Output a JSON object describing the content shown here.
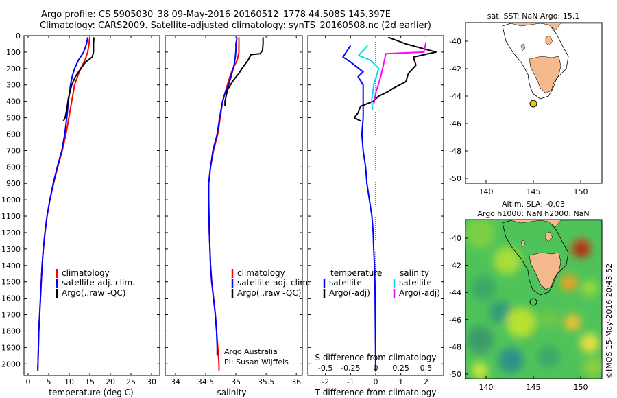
{
  "header": {
    "line1": "Argo profile: CS 5905030_38 09-May-2016 20160512_1778 44.508S 145.397E",
    "line2": "Climatology: CARS2009. Satellite-adjusted climatology: synTS_20160508.nc (2d earlier)"
  },
  "colors": {
    "climatology": "#ff0000",
    "satellite": "#0000ff",
    "argo": "#000000",
    "sat_sal": "#00e0e0",
    "argo_sal": "#ff00ff"
  },
  "depth_ticks": [
    0,
    100,
    200,
    300,
    400,
    500,
    600,
    700,
    800,
    900,
    1000,
    1100,
    1200,
    1300,
    1400,
    1500,
    1600,
    1700,
    1800,
    1900,
    2000
  ],
  "panels": {
    "temperature": {
      "xlabel": "temperature (deg C)",
      "xticks": [
        "0",
        "5",
        "10",
        "15",
        "20",
        "25",
        "30"
      ],
      "legend": [
        "climatology",
        "satellite-adj. clim.",
        "Argo(..raw -QC)"
      ]
    },
    "salinity": {
      "xlabel": "salinity",
      "xticks": [
        "34",
        "34.5",
        "35",
        "35.5",
        "36"
      ],
      "legend": [
        "climatology",
        "satellite-adj. clim.",
        "Argo(..raw -QC)"
      ],
      "note1": "Argo Australia",
      "note2": "PI: Susan Wijffels"
    },
    "difference": {
      "top_label": "S difference from climatology",
      "s_ticks": [
        "-0.5",
        "-0.25",
        "0",
        "0.25",
        "0.5"
      ],
      "t_ticks": [
        "-2",
        "-1",
        "0",
        "1",
        "2"
      ],
      "xlabel": "T difference from climatology",
      "legend_t_title": "temperature",
      "legend_s_title": "salinity",
      "legend_t": [
        "satellite",
        "Argo(-adj)"
      ],
      "legend_s": [
        "satellite",
        "Argo(-adj)"
      ]
    }
  },
  "map_sst": {
    "title": "sat. SST: NaN Argo: 15.1",
    "lat_ticks": [
      "-40",
      "-42",
      "-44",
      "-46",
      "-48",
      "-50"
    ],
    "lon_ticks": [
      "140",
      "145",
      "150"
    ]
  },
  "map_sla": {
    "title1": "Altim. SLA: -0.03",
    "title2": "Argo h1000: NaN h2000: NaN",
    "lat_ticks": [
      "-40",
      "-42",
      "-44",
      "-46",
      "-48",
      "-50"
    ],
    "lon_ticks": [
      "140",
      "145",
      "150"
    ],
    "stamp": "©IMOS 15-May-2016 20:43:52"
  },
  "chart_data": [
    {
      "type": "line",
      "title": "",
      "xlabel": "temperature (deg C)",
      "ylabel": "",
      "xlim": [
        -1,
        32
      ],
      "ylim": [
        2070,
        0
      ],
      "series": [
        {
          "name": "climatology",
          "points": [
            [
              15,
              10
            ],
            [
              14.8,
              50
            ],
            [
              14.5,
              100
            ],
            [
              13.8,
              150
            ],
            [
              12.8,
              200
            ],
            [
              12,
              250
            ],
            [
              11.3,
              300
            ],
            [
              10.6,
              400
            ],
            [
              9.9,
              500
            ],
            [
              9.2,
              600
            ],
            [
              8.3,
              700
            ],
            [
              7.2,
              800
            ],
            [
              6.2,
              900
            ],
            [
              5.3,
              1000
            ],
            [
              4.6,
              1100
            ],
            [
              4.1,
              1200
            ],
            [
              3.7,
              1300
            ],
            [
              3.4,
              1400
            ],
            [
              3.2,
              1500
            ],
            [
              3,
              1600
            ],
            [
              2.8,
              1700
            ],
            [
              2.6,
              1800
            ],
            [
              2.5,
              1900
            ],
            [
              2.4,
              2000
            ],
            [
              2.35,
              2040
            ]
          ]
        },
        {
          "name": "satellite-adj. clim.",
          "points": [
            [
              14.5,
              10
            ],
            [
              14.2,
              50
            ],
            [
              13.5,
              100
            ],
            [
              12.2,
              150
            ],
            [
              11.3,
              200
            ],
            [
              10.7,
              250
            ],
            [
              10.3,
              300
            ],
            [
              9.8,
              400
            ],
            [
              9.4,
              500
            ],
            [
              8.9,
              600
            ],
            [
              8.2,
              700
            ],
            [
              7.1,
              800
            ],
            [
              6.1,
              900
            ],
            [
              5.3,
              1000
            ],
            [
              4.6,
              1100
            ],
            [
              4.1,
              1200
            ],
            [
              3.7,
              1300
            ],
            [
              3.4,
              1400
            ],
            [
              3.2,
              1500
            ],
            [
              3,
              1600
            ],
            [
              2.8,
              1700
            ],
            [
              2.6,
              1800
            ],
            [
              2.5,
              1900
            ],
            [
              2.4,
              2000
            ],
            [
              2.35,
              2040
            ]
          ]
        },
        {
          "name": "Argo(..raw -QC)",
          "points": [
            [
              16,
              10
            ],
            [
              15.9,
              50
            ],
            [
              15.9,
              100
            ],
            [
              15.6,
              130
            ],
            [
              14,
              160
            ],
            [
              12.8,
              200
            ],
            [
              11.5,
              250
            ],
            [
              10.6,
              300
            ],
            [
              9.8,
              380
            ],
            [
              9.4,
              450
            ],
            [
              9,
              500
            ],
            [
              8.6,
              520
            ]
          ]
        }
      ]
    },
    {
      "type": "line",
      "title": "",
      "xlabel": "salinity",
      "ylabel": "",
      "xlim": [
        33.83,
        36.1
      ],
      "ylim": [
        2070,
        0
      ],
      "series": [
        {
          "name": "climatology",
          "points": [
            [
              35.05,
              10
            ],
            [
              35.05,
              50
            ],
            [
              35.05,
              100
            ],
            [
              35.02,
              150
            ],
            [
              34.95,
              200
            ],
            [
              34.9,
              250
            ],
            [
              34.86,
              300
            ],
            [
              34.82,
              350
            ],
            [
              34.78,
              400
            ],
            [
              34.74,
              500
            ],
            [
              34.7,
              600
            ],
            [
              34.63,
              700
            ],
            [
              34.58,
              800
            ],
            [
              34.55,
              900
            ],
            [
              34.55,
              1000
            ],
            [
              34.56,
              1200
            ],
            [
              34.58,
              1400
            ],
            [
              34.6,
              1500
            ],
            [
              34.63,
              1600
            ],
            [
              34.66,
              1700
            ],
            [
              34.68,
              1800
            ],
            [
              34.7,
              1900
            ],
            [
              34.72,
              2000
            ],
            [
              34.72,
              2040
            ]
          ]
        },
        {
          "name": "satellite-adj. clim.",
          "points": [
            [
              35.02,
              10
            ],
            [
              35,
              50
            ],
            [
              35,
              90
            ],
            [
              34.99,
              130
            ],
            [
              34.97,
              180
            ],
            [
              34.92,
              250
            ],
            [
              34.88,
              300
            ],
            [
              34.82,
              350
            ],
            [
              34.78,
              400
            ],
            [
              34.73,
              500
            ],
            [
              34.69,
              600
            ],
            [
              34.62,
              700
            ],
            [
              34.58,
              800
            ],
            [
              34.55,
              900
            ],
            [
              34.55,
              1000
            ],
            [
              34.56,
              1200
            ],
            [
              34.58,
              1400
            ],
            [
              34.6,
              1500
            ],
            [
              34.63,
              1600
            ],
            [
              34.66,
              1700
            ],
            [
              34.68,
              1800
            ],
            [
              34.69,
              1900
            ],
            [
              34.69,
              1950
            ]
          ]
        },
        {
          "name": "Argo(..raw -QC)",
          "points": [
            [
              35.45,
              10
            ],
            [
              35.45,
              50
            ],
            [
              35.44,
              90
            ],
            [
              35.4,
              110
            ],
            [
              35.25,
              115
            ],
            [
              35.2,
              150
            ],
            [
              35.1,
              200
            ],
            [
              35.05,
              230
            ],
            [
              34.96,
              270
            ],
            [
              34.86,
              330
            ],
            [
              34.82,
              400
            ],
            [
              34.82,
              430
            ]
          ]
        }
      ]
    },
    {
      "type": "line",
      "title": "",
      "xlabel": "T difference from climatology",
      "ylabel": "",
      "xlim": [
        -2.7,
        2.7
      ],
      "ylim": [
        2070,
        0
      ],
      "series": [
        {
          "name": "satellite",
          "points": [
            [
              -1,
              60
            ],
            [
              -1.3,
              130
            ],
            [
              -1,
              160
            ],
            [
              -0.5,
              220
            ],
            [
              -0.7,
              250
            ],
            [
              -0.5,
              300
            ],
            [
              -0.5,
              400
            ],
            [
              -0.5,
              500
            ],
            [
              -0.55,
              600
            ],
            [
              -0.5,
              700
            ],
            [
              -0.4,
              800
            ],
            [
              -0.35,
              900
            ],
            [
              -0.25,
              1000
            ],
            [
              -0.15,
              1100
            ],
            [
              -0.1,
              1200
            ],
            [
              -0.08,
              1300
            ],
            [
              -0.05,
              1400
            ],
            [
              -0.03,
              1500
            ],
            [
              0,
              2040
            ]
          ]
        },
        {
          "name": "Argo(-adj)",
          "points": [
            [
              0.5,
              10
            ],
            [
              1.2,
              50
            ],
            [
              2.4,
              100
            ],
            [
              1.5,
              130
            ],
            [
              1.6,
              180
            ],
            [
              1.3,
              230
            ],
            [
              1.2,
              280
            ],
            [
              0.7,
              320
            ],
            [
              0.5,
              340
            ],
            [
              0.1,
              370
            ],
            [
              -0.1,
              400
            ],
            [
              -0.6,
              430
            ],
            [
              -0.7,
              470
            ],
            [
              -0.85,
              500
            ],
            [
              -0.6,
              520
            ]
          ]
        }
      ],
      "s_series": [
        {
          "name": "satellite",
          "points": [
            [
              -0.08,
              60
            ],
            [
              -0.17,
              120
            ],
            [
              -0.05,
              150
            ],
            [
              0.03,
              200
            ],
            [
              -0.02,
              300
            ],
            [
              -0.04,
              400
            ],
            [
              -0.03,
              450
            ]
          ]
        },
        {
          "name": "Argo(-adj)",
          "points": [
            [
              0.5,
              40
            ],
            [
              0.48,
              100
            ],
            [
              0.1,
              110
            ],
            [
              0.08,
              170
            ],
            [
              0.05,
              250
            ],
            [
              0.0,
              350
            ],
            [
              -0.02,
              420
            ]
          ]
        }
      ]
    }
  ]
}
